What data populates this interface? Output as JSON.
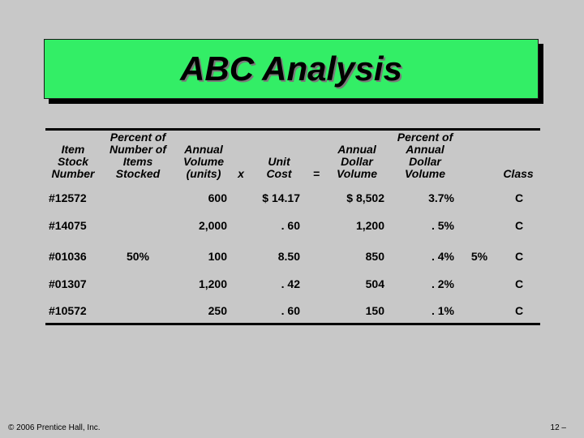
{
  "title": "ABC Analysis",
  "headers": {
    "item_stock_number": [
      "Item",
      "Stock",
      "Number"
    ],
    "percent_items_stocked": [
      "Percent of",
      "Number of",
      "Items",
      "Stocked"
    ],
    "annual_volume": [
      "Annual",
      "Volume",
      "(units)"
    ],
    "times": "x",
    "unit_cost": [
      "Unit",
      "Cost"
    ],
    "equals": "=",
    "annual_dollar_volume": [
      "Annual",
      "Dollar",
      "Volume"
    ],
    "percent_annual_dollar_volume": [
      "Percent of",
      "Annual",
      "Dollar",
      "Volume"
    ],
    "class": "Class"
  },
  "rows": [
    {
      "item": "#12572",
      "volume": "600",
      "cost": "$ 14.17",
      "dollar_volume": "$ 8,502",
      "percent": "3.7%",
      "class": "C"
    },
    {
      "item": "#14075",
      "volume": "2,000",
      "cost": ". 60",
      "dollar_volume": "1,200",
      "percent": ". 5%",
      "class": "C"
    },
    {
      "item": "#01036",
      "volume": "100",
      "cost": "8.50",
      "dollar_volume": "850",
      "percent": ". 4%",
      "class": "C"
    },
    {
      "item": "#01307",
      "volume": "1,200",
      "cost": ". 42",
      "dollar_volume": "504",
      "percent": ". 2%",
      "class": "C"
    },
    {
      "item": "#10572",
      "volume": "250",
      "cost": ". 60",
      "dollar_volume": "150",
      "percent": ". 1%",
      "class": "C"
    }
  ],
  "group_percent_items": "50%",
  "group_percent_dollar": "5%",
  "footer": {
    "copyright": "© 2006 Prentice Hall, Inc.",
    "page": "12 –"
  },
  "colors": {
    "title_box": "#33ee66",
    "background": "#c8c8c8"
  }
}
